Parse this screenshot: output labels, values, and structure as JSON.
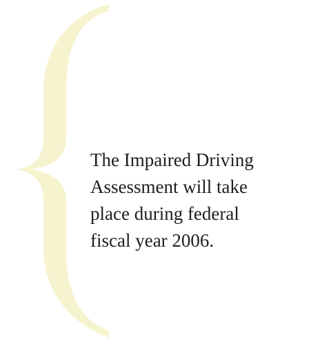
{
  "pull_quote": {
    "lines": [
      "The Impaired Driving",
      "Assessment will take",
      "place during federal",
      "fiscal year 2006."
    ]
  }
}
